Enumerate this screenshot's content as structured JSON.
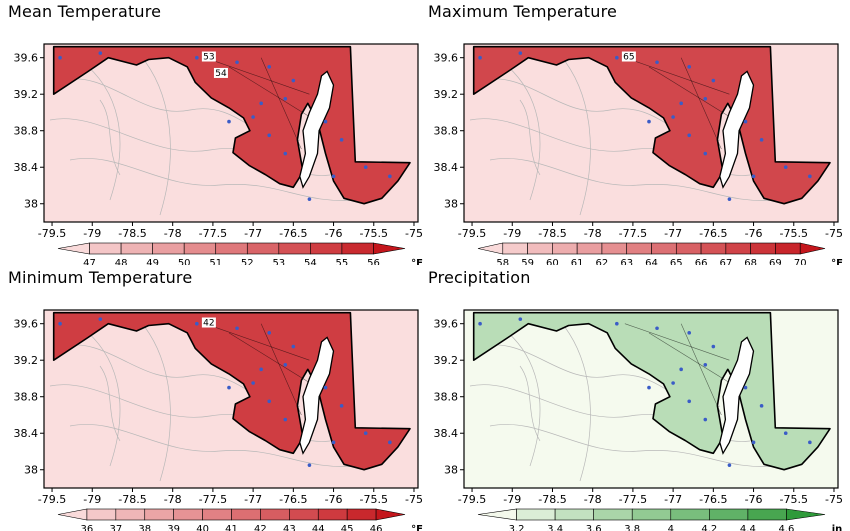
{
  "panels": [
    {
      "id": "mean",
      "title": "Mean Temperature",
      "unit": "°F",
      "color_low": "#f9dada",
      "color_high": "#c4161c",
      "colorbar_ticks": [
        "47",
        "48",
        "49",
        "50",
        "51",
        "52",
        "53",
        "54",
        "55",
        "56"
      ],
      "contour_labels": [
        "53",
        "54"
      ],
      "shading_level": 0.78
    },
    {
      "id": "max",
      "title": "Maximum Temperature",
      "unit": "°F",
      "color_low": "#f9dada",
      "color_high": "#c4161c",
      "colorbar_ticks": [
        "58",
        "59",
        "60",
        "61",
        "62",
        "63",
        "64",
        "65",
        "66",
        "67",
        "68",
        "69",
        "70"
      ],
      "contour_labels": [
        "65"
      ],
      "shading_level": 0.75
    },
    {
      "id": "min",
      "title": "Minimum Temperature",
      "unit": "°F",
      "color_low": "#f9dada",
      "color_high": "#c4161c",
      "colorbar_ticks": [
        "36",
        "37",
        "38",
        "39",
        "40",
        "41",
        "42",
        "43",
        "44",
        "45",
        "46"
      ],
      "contour_labels": [
        "42"
      ],
      "shading_level": 0.8
    },
    {
      "id": "precip",
      "title": "Precipitation",
      "unit": "in",
      "color_low": "#f4f9ec",
      "color_high": "#2f9a3a",
      "colorbar_ticks": [
        "3.2",
        "3.4",
        "3.6",
        "3.8",
        "4",
        "4.2",
        "4.4",
        "4.6"
      ],
      "contour_labels": [],
      "shading_level": 0.3
    }
  ],
  "axes": {
    "x_ticks": [
      "-79.5",
      "-79",
      "-78.5",
      "-78",
      "-77.5",
      "-77",
      "-76.5",
      "-76",
      "-75.5",
      "-75"
    ],
    "y_ticks": [
      "39.6",
      "39.2",
      "38.8",
      "38.4",
      "38"
    ],
    "x_range": [
      -79.6,
      -74.95
    ],
    "y_range": [
      37.8,
      39.75
    ]
  },
  "station_color": "#3a5cc7"
}
